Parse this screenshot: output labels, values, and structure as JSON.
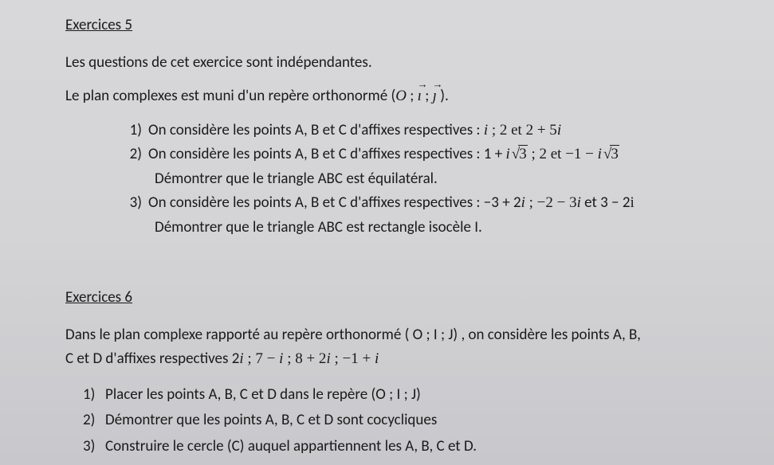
{
  "ex5": {
    "title": "Exercices 5",
    "intro1": "Les questions de cet exercice sont indépendantes.",
    "intro2_pre": "Le plan complexes est muni d'un repère orthonormé (",
    "intro2_O": "O",
    "intro2_sep1": " ;  ",
    "intro2_i": "ı",
    "intro2_sep2": " ; ",
    "intro2_j": "ȷ",
    "intro2_post": " ).",
    "q1_num": "1)",
    "q1_pre": "On considère les points A, B et C d'affixes respectives : ",
    "q1_a1": "i",
    "q1_mid1": " ; 2 et   2 + 5",
    "q1_a3": "i",
    "q2_num": "2)",
    "q2_pre": "On considère les points A, B et C d'affixes respectives : 1 + ",
    "q2_i1": "i",
    "q2_sqrt1": "3",
    "q2_mid": " ; 2 et   −1 − ",
    "q2_i2": "i",
    "q2_sqrt2": "3",
    "q2_sub": "Démontrer que le triangle ABC est équilatéral.",
    "q3_num": "3)",
    "q3_pre": "On considère les points A, B et C d'affixes respectives : −3 + 2",
    "q3_i1": "i",
    "q3_mid1": " ; −2 − 3",
    "q3_i2": "i",
    "q3_mid2": " et   3 − 2",
    "q3_i3": "i",
    "q3_sub": "Démontrer que le triangle ABC est rectangle isocèle I."
  },
  "ex6": {
    "title": "Exercices 6",
    "intro1": "Dans le plan complexe rapporté au repère orthonormé ( O ; I ; J) , on considère les points A, B,",
    "intro2_pre": "C et D d'affixes respectives  2",
    "intro2_i1": "i",
    "intro2_m1": " ; 7 −  ",
    "intro2_i2": "i",
    "intro2_m2": " ; 8 + 2",
    "intro2_i3": "i",
    "intro2_m3": " ; −1 + ",
    "intro2_i4": "i",
    "q1_num": "1)",
    "q1": "Placer les points A, B, C et D dans le repère (O ; I ; J)",
    "q2_num": "2)",
    "q2": "Démontrer que les points A, B, C et D sont cocycliques",
    "q3_num": "3)",
    "q3": "Construire le cercle (C) auquel appartiennent les A, B, C et D."
  }
}
